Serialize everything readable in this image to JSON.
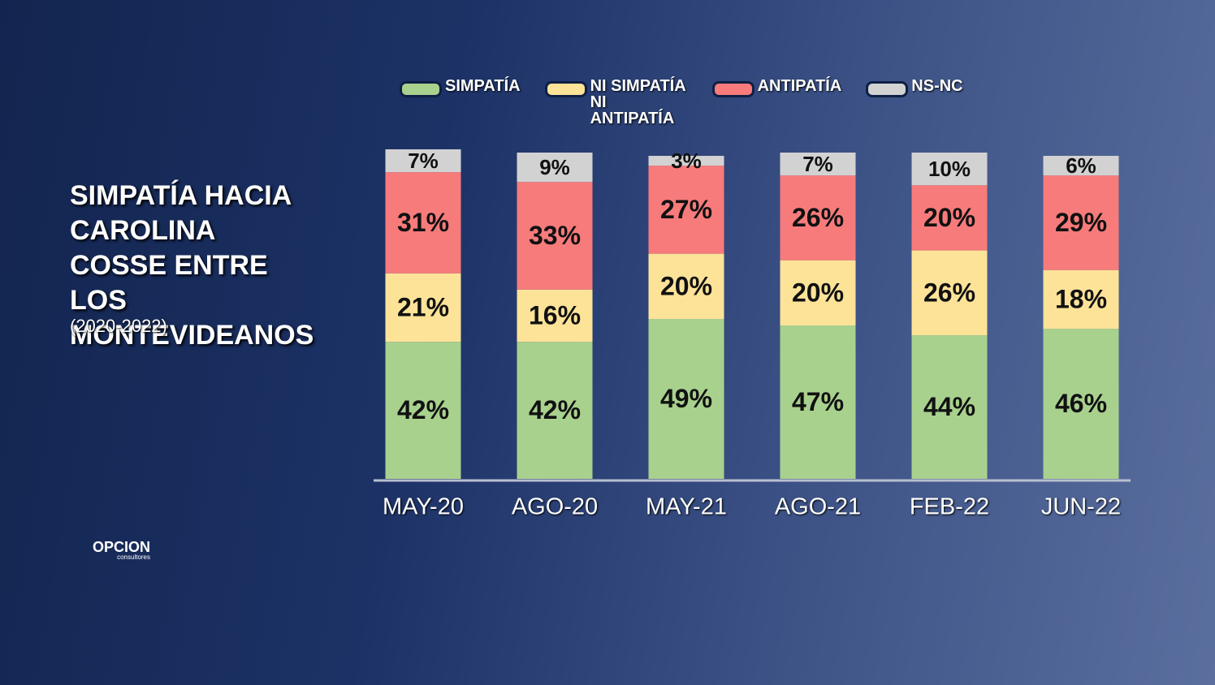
{
  "chart_data": {
    "type": "stacked_bar",
    "title": "SIMPATÍA HACIA CAROLINA COSSE ENTRE LOS MONTEVIDEANOS",
    "subtitle": "(2020-2022)",
    "categories": [
      "MAY-20",
      "AGO-20",
      "MAY-21",
      "AGO-21",
      "FEB-22",
      "JUN-22"
    ],
    "ylim": [
      0,
      100
    ],
    "series": [
      {
        "name": "SIMPATÍA",
        "color": "#a9d18e",
        "values": [
          42,
          42,
          49,
          47,
          44,
          46
        ],
        "value_labels": [
          "42%",
          "42%",
          "49%",
          "47%",
          "44%",
          "46%"
        ]
      },
      {
        "name": "NI SIMPATÍA NI ANTIPATÍA",
        "color": "#fde398",
        "values": [
          21,
          16,
          20,
          20,
          26,
          18
        ],
        "value_labels": [
          "21%",
          "16%",
          "20%",
          "20%",
          "26%",
          "18%"
        ]
      },
      {
        "name": "ANTIPATÍA",
        "color": "#f77b7b",
        "values": [
          31,
          33,
          27,
          26,
          20,
          29
        ],
        "value_labels": [
          "31%",
          "33%",
          "27%",
          "26%",
          "20%",
          "29%"
        ]
      },
      {
        "name": "NS-NC",
        "color": "#d2d2d2",
        "values": [
          7,
          9,
          3,
          7,
          10,
          6
        ],
        "value_labels": [
          "7%",
          "9%",
          "3%",
          "7%",
          "10%",
          "6%"
        ]
      }
    ]
  },
  "logo": {
    "name": "OPCION",
    "tagline": "consultores"
  }
}
